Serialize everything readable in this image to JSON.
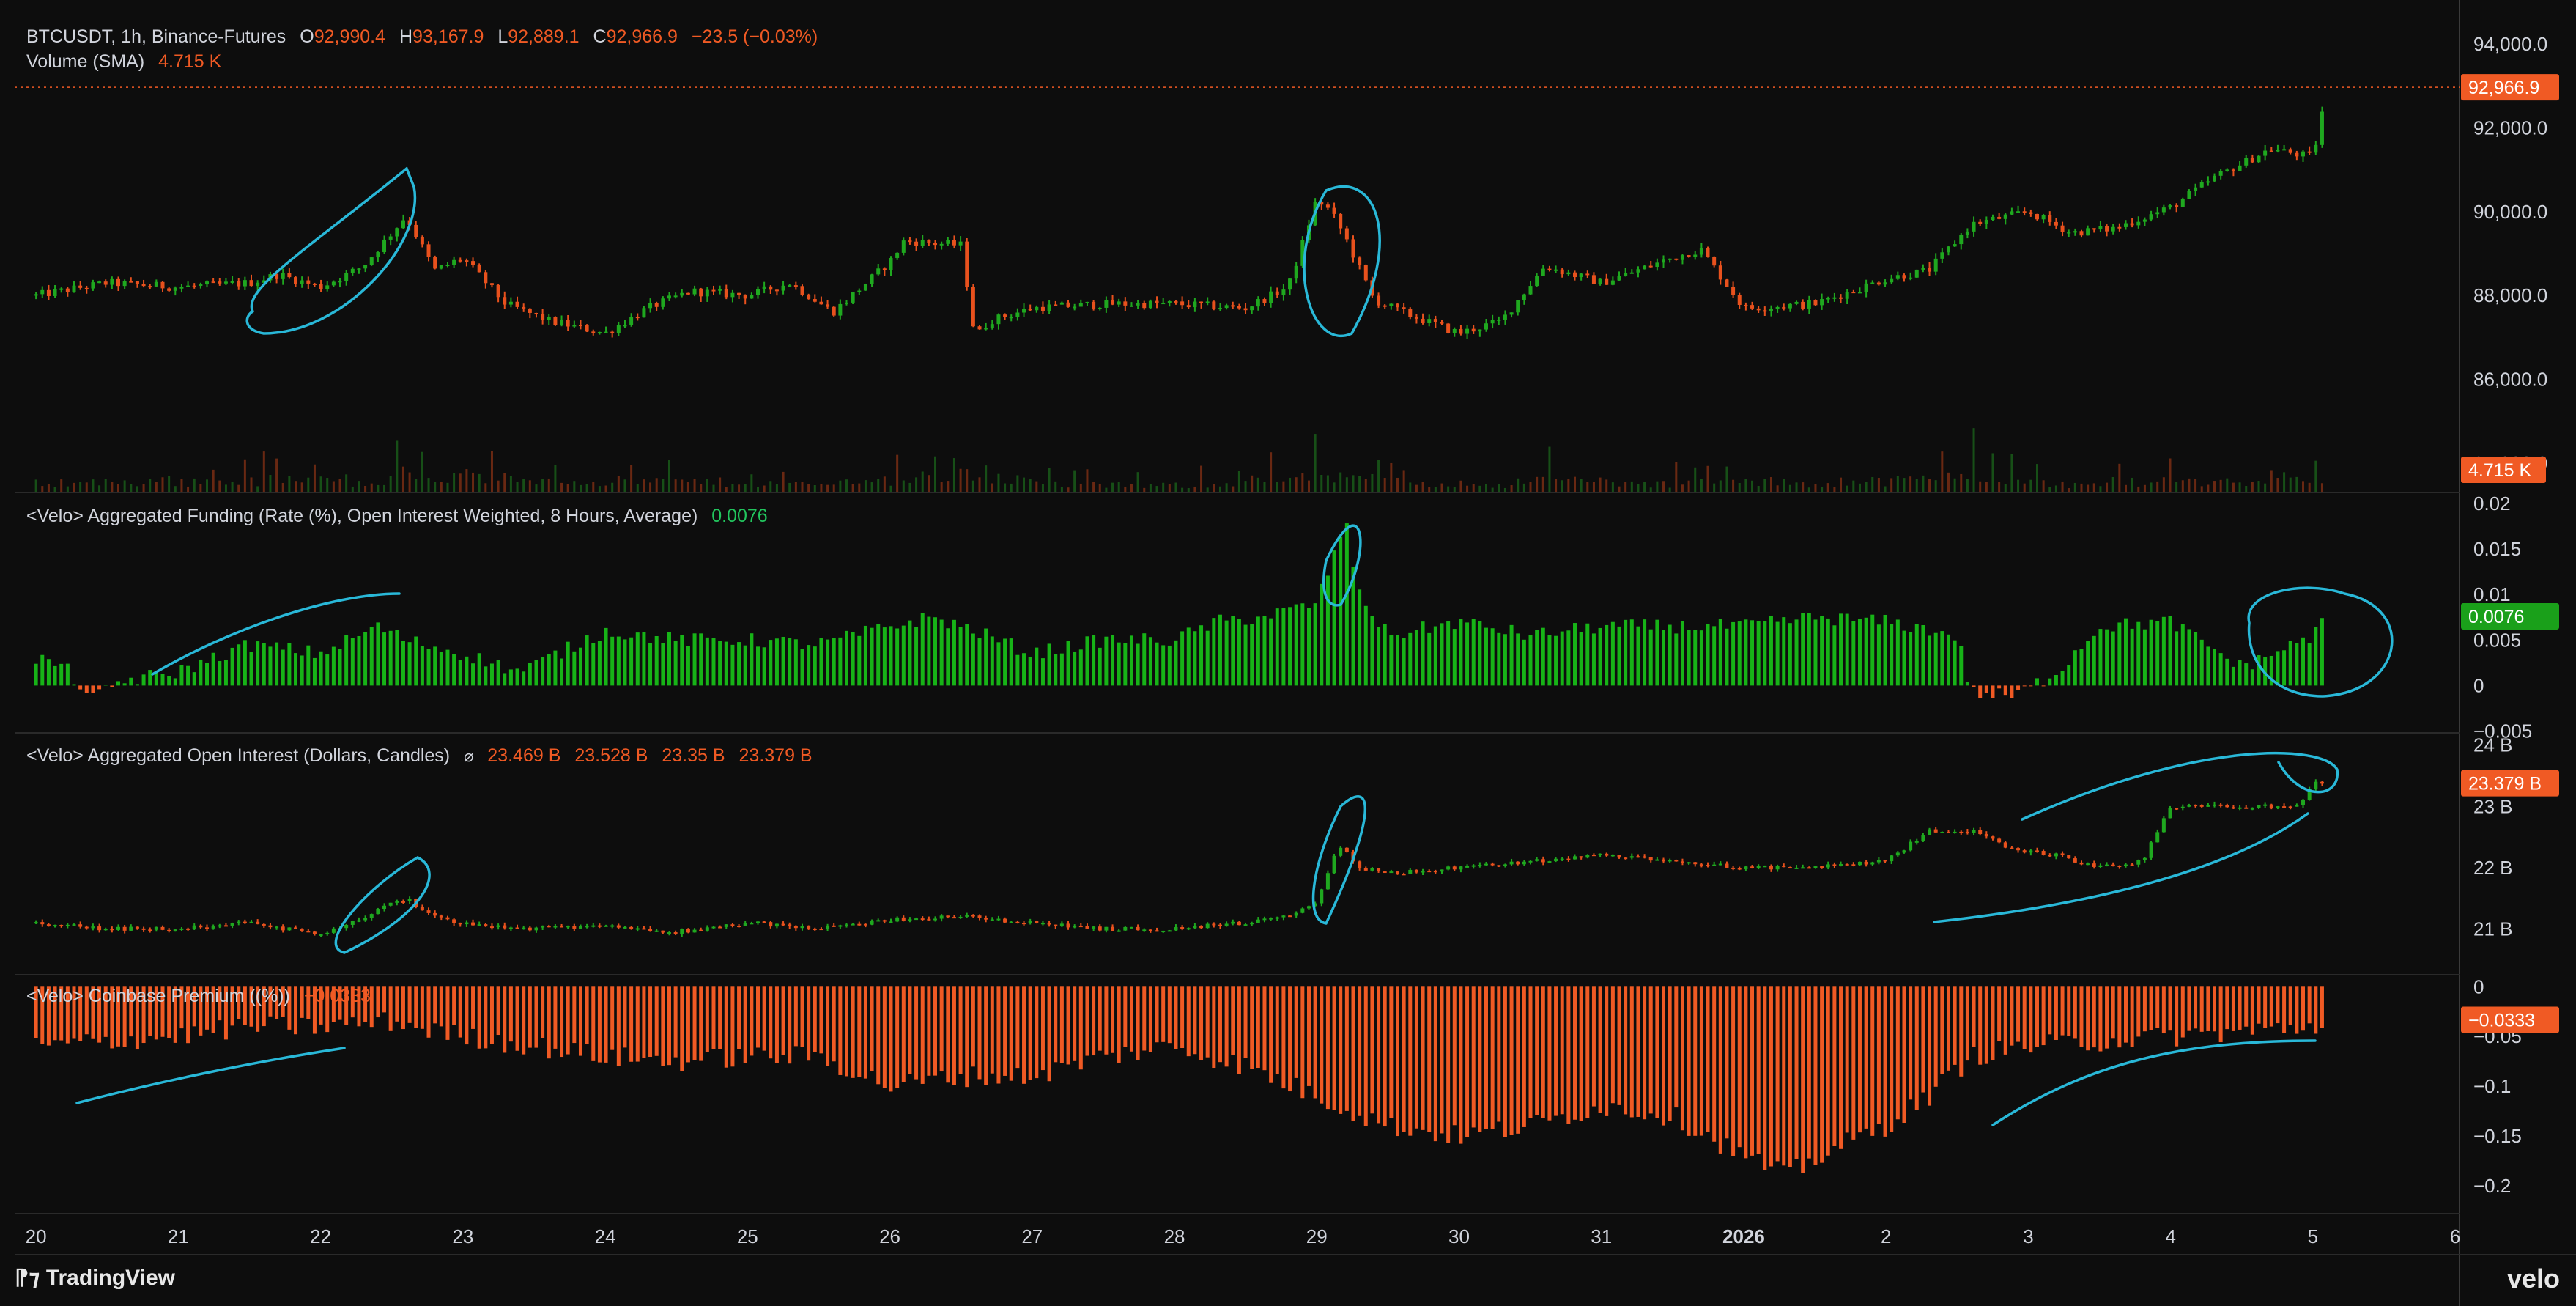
{
  "colors": {
    "background": "#0d0d0d",
    "up": "#1fa81f",
    "down": "#e8511d",
    "positive_bar": "#17b317",
    "negative_bar": "#f05a24",
    "annotation": "#29b8d8",
    "axis_text": "#d1d4dc"
  },
  "legend": {
    "symbol": "BTCUSDT, 1h, Binance-Futures",
    "o_label": "O",
    "o_value": "92,990.4",
    "h_label": "H",
    "h_value": "93,167.9",
    "l_label": "L",
    "l_value": "92,889.1",
    "c_label": "C",
    "c_value": "92,966.9",
    "change": "−23.5 (−0.03%)",
    "volume_label": "Volume (SMA)",
    "volume_value": "4.715 K",
    "funding_label": "<Velo> Aggregated Funding (Rate (%), Open Interest Weighted, 8 Hours, Average)",
    "funding_value": "0.0076",
    "oi_label": "<Velo> Aggregated Open Interest (Dollars, Candles)",
    "oi_icon": "hidden-eye-icon",
    "oi_o": "23.469 B",
    "oi_h": "23.528 B",
    "oi_l": "23.35 B",
    "oi_c": "23.379 B",
    "premium_label": "<Velo> Coinbase Premium ((%))",
    "premium_value": "−0.0333"
  },
  "branding": {
    "left": "TradingView",
    "right": "velo"
  },
  "chart_data": [
    {
      "id": "price",
      "type": "candlestick",
      "title": "BTCUSDT, 1h, Binance-Futures",
      "ylim": [
        83300,
        94700
      ],
      "yticks": [
        "94,000.0",
        "92,000.0",
        "90,000.0",
        "88,000.0",
        "86,000.0",
        "84,000.0"
      ],
      "ytick_values": [
        94000,
        92000,
        90000,
        88000,
        86000,
        84000
      ],
      "last_value": 92966.9,
      "last_label": "92,966.9",
      "x": [
        20,
        20.5,
        21,
        21.5,
        21.7,
        22,
        22.3,
        22.6,
        22.8,
        23,
        23.3,
        23.6,
        24,
        24.3,
        24.6,
        25,
        25.3,
        25.6,
        26,
        26.1,
        26.5,
        26.6,
        26.7,
        27,
        27.5,
        28,
        28.5,
        28.8,
        29,
        29.1,
        29.2,
        29.4,
        29.6,
        30,
        30.3,
        30.6,
        31,
        31.5,
        31.7,
        32,
        32.5,
        33,
        33.3,
        33.6,
        34,
        34.3,
        34.6,
        35,
        35.3,
        35.7,
        36,
        36.1
      ],
      "values": [
        88000,
        88300,
        88200,
        88300,
        88500,
        88200,
        88700,
        89900,
        88600,
        88900,
        87800,
        87400,
        87100,
        87700,
        88100,
        88000,
        88300,
        87600,
        88800,
        89300,
        89200,
        87000,
        87400,
        87700,
        87800,
        87800,
        87700,
        88200,
        90300,
        90000,
        89400,
        87900,
        87600,
        87100,
        87400,
        88700,
        88300,
        88900,
        89100,
        87700,
        87800,
        88400,
        88600,
        89700,
        90000,
        89500,
        89600,
        90100,
        90800,
        91500,
        91300,
        92966.9
      ],
      "volume": {
        "label": "Volume (SMA)",
        "last_label": "4.715 K",
        "x": [
          20.3,
          21.3,
          21.8,
          22.2,
          22.5,
          22.7,
          23.4,
          24.0,
          24.6,
          25.5,
          25.8,
          26.2,
          26.6,
          27.2,
          28.0,
          28.9,
          29.05,
          29.2,
          29.4,
          30.3,
          30.6,
          31.3,
          31.7,
          32.2,
          32.5,
          33.0,
          33.3,
          33.6,
          34.0,
          34.4,
          35.0,
          35.6,
          36.0
        ],
        "values": [
          2.4,
          2.6,
          3.0,
          2.4,
          3.4,
          3.6,
          3.1,
          2.6,
          2.6,
          1.8,
          2.6,
          3.4,
          4.2,
          1.8,
          1.6,
          3.2,
          4.3,
          3.0,
          2.6,
          1.8,
          3.3,
          1.8,
          2.4,
          2.5,
          2.0,
          2.8,
          3.1,
          4.5,
          2.3,
          1.7,
          2.9,
          2.0,
          3.5
        ]
      }
    },
    {
      "id": "funding",
      "type": "bar",
      "title": "<Velo> Aggregated Funding (Rate (%), Open Interest Weighted, 8 Hours, Average)",
      "ylim": [
        -0.0052,
        0.0212
      ],
      "yticks": [
        "0.02",
        "0.015",
        "0.01",
        "0.005",
        "0",
        "−0.005"
      ],
      "ytick_values": [
        0.02,
        0.015,
        0.01,
        0.005,
        0,
        -0.005
      ],
      "last_value": 0.0076,
      "last_label": "0.0076",
      "x": [
        20,
        20.2,
        20.4,
        20.6,
        21,
        21.5,
        22,
        22.4,
        22.6,
        23,
        23.4,
        24,
        24.5,
        25,
        25.5,
        26,
        26.3,
        26.6,
        27,
        27.5,
        28,
        28.3,
        28.6,
        29,
        29.2,
        29.3,
        29.5,
        30,
        30.5,
        31,
        31.5,
        32,
        32.5,
        33,
        33.5,
        33.6,
        33.9,
        34.2,
        34.5,
        35,
        35.5,
        36,
        36.1
      ],
      "values": [
        0.003,
        0.002,
        -0.0015,
        0.0005,
        0.0015,
        0.0045,
        0.0035,
        0.0065,
        0.005,
        0.0035,
        0.0015,
        0.006,
        0.005,
        0.005,
        0.0045,
        0.0065,
        0.0075,
        0.006,
        0.0035,
        0.005,
        0.005,
        0.007,
        0.0075,
        0.009,
        0.018,
        0.01,
        0.0055,
        0.007,
        0.0055,
        0.0065,
        0.0065,
        0.0065,
        0.0075,
        0.007,
        0.0055,
        -0.0008,
        -0.0012,
        0.0015,
        0.0065,
        0.007,
        0.002,
        0.0055,
        0.0076
      ]
    },
    {
      "id": "open_interest",
      "type": "candlestick",
      "title": "<Velo> Aggregated Open Interest (Dollars, Candles)",
      "ylim": [
        20.25,
        24.2
      ],
      "yticks": [
        "24 B",
        "23 B",
        "22 B",
        "21 B"
      ],
      "ytick_values": [
        24,
        23,
        22,
        21
      ],
      "last_value": 23.379,
      "last_label": "23.379 B",
      "x": [
        20,
        20.5,
        21,
        21.5,
        22,
        22.3,
        22.6,
        22.8,
        23,
        23.4,
        24,
        24.5,
        25,
        25.5,
        26,
        26.5,
        27,
        27.5,
        28,
        28.5,
        28.8,
        29,
        29.15,
        29.3,
        29.5,
        30,
        30.5,
        31,
        31.5,
        32,
        32.5,
        33,
        33.3,
        33.6,
        33.9,
        34.2,
        34.5,
        34.8,
        35.0,
        35.5,
        35.9,
        36.0,
        36.1
      ],
      "values": [
        21.1,
        21.0,
        21.0,
        21.1,
        20.9,
        21.2,
        21.5,
        21.2,
        21.1,
        21.0,
        21.05,
        20.95,
        21.1,
        21.0,
        21.15,
        21.2,
        21.1,
        21.0,
        21.0,
        21.1,
        21.2,
        21.4,
        22.4,
        22.0,
        21.9,
        22.0,
        22.1,
        22.2,
        22.1,
        22.0,
        22.0,
        22.1,
        22.6,
        22.6,
        22.3,
        22.2,
        22.0,
        22.1,
        23.0,
        23.0,
        23.0,
        23.4,
        23.379
      ]
    },
    {
      "id": "coinbase_premium",
      "type": "bar",
      "title": "<Velo> Coinbase Premium ((%))",
      "ylim": [
        -0.228,
        0.012
      ],
      "yticks": [
        "0",
        "−0.05",
        "−0.1",
        "−0.15",
        "−0.2"
      ],
      "ytick_values": [
        0,
        -0.05,
        -0.1,
        -0.15,
        -0.2
      ],
      "last_value": -0.0333,
      "last_label": "−0.0333",
      "x": [
        20,
        20.5,
        21,
        21.5,
        22,
        22.5,
        23,
        23.5,
        24,
        24.5,
        25,
        25.5,
        26,
        26.5,
        27,
        27.5,
        28,
        28.5,
        29,
        29.5,
        30,
        30.5,
        31,
        31.5,
        32,
        32.3,
        32.6,
        33,
        33.3,
        33.6,
        34,
        34.5,
        35,
        35.5,
        36,
        36.1
      ],
      "values": [
        -0.06,
        -0.055,
        -0.05,
        -0.04,
        -0.04,
        -0.035,
        -0.05,
        -0.06,
        -0.07,
        -0.075,
        -0.07,
        -0.07,
        -0.1,
        -0.09,
        -0.09,
        -0.07,
        -0.06,
        -0.08,
        -0.11,
        -0.14,
        -0.15,
        -0.14,
        -0.12,
        -0.13,
        -0.17,
        -0.19,
        -0.165,
        -0.14,
        -0.11,
        -0.07,
        -0.06,
        -0.055,
        -0.05,
        -0.045,
        -0.04,
        -0.0333
      ]
    }
  ],
  "x_axis": {
    "ticks": [
      "20",
      "21",
      "22",
      "23",
      "24",
      "25",
      "26",
      "27",
      "28",
      "29",
      "30",
      "31",
      "2026",
      "2",
      "3",
      "4",
      "5",
      "6"
    ],
    "tick_values": [
      20,
      21,
      22,
      23,
      24,
      25,
      26,
      27,
      28,
      29,
      30,
      31,
      32,
      33,
      34,
      35,
      36,
      37
    ],
    "xlim": [
      19.85,
      37.2
    ],
    "bold_tick": "2026"
  }
}
